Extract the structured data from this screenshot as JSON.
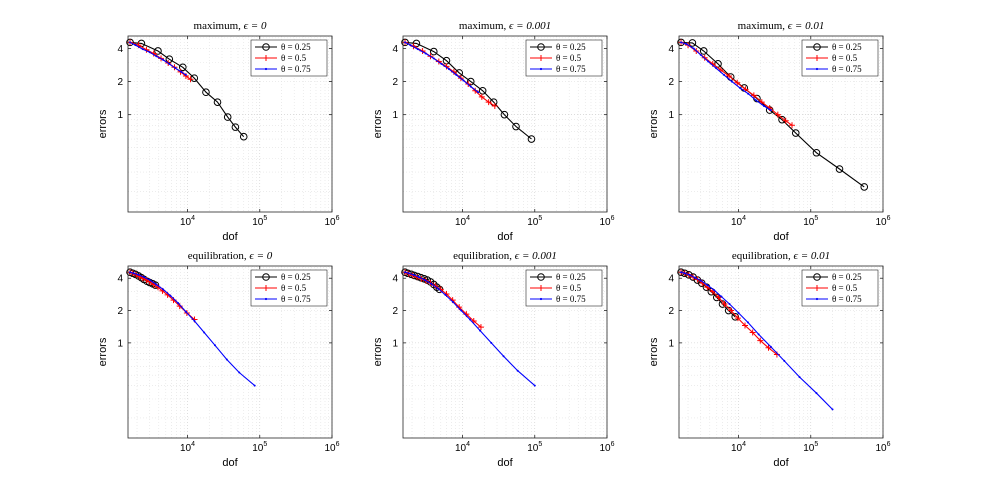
{
  "chart_data": [
    {
      "type": "line",
      "title_text": "maximum, ",
      "title_param": "ϵ = 0",
      "xlabel": "dof",
      "ylabel": "errors",
      "xscale": "log",
      "yscale": "log",
      "xlim": [
        1500,
        1000000
      ],
      "ylim": [
        0.13,
        5.2
      ],
      "grid": true,
      "legend_position": "top-right",
      "series": [
        {
          "name": "θ = 0.25",
          "color": "#000000",
          "marker": "circle",
          "x": [
            1600,
            2300,
            3900,
            5600,
            8600,
            12400,
            18000,
            26000,
            36000,
            46000,
            60000
          ],
          "y": [
            4.55,
            4.45,
            3.8,
            3.2,
            2.7,
            2.15,
            1.6,
            1.3,
            0.95,
            0.77,
            0.63
          ]
        },
        {
          "name": "θ = 0.5",
          "color": "#ff0000",
          "marker": "plus",
          "x": [
            1600,
            2100,
            2700,
            3400,
            4300,
            5400,
            6600,
            8000,
            9500,
            11000
          ],
          "y": [
            4.55,
            4.3,
            3.9,
            3.6,
            3.25,
            2.95,
            2.7,
            2.45,
            2.25,
            2.1
          ]
        },
        {
          "name": "θ = 0.75",
          "color": "#0000ff",
          "marker": "dot",
          "x": [
            1600,
            1900,
            2400,
            3000,
            3700,
            4600,
            5600,
            6800,
            8200,
            9500
          ],
          "y": [
            4.55,
            4.3,
            3.95,
            3.7,
            3.4,
            3.15,
            2.9,
            2.65,
            2.45,
            2.3
          ]
        }
      ]
    },
    {
      "type": "line",
      "title_text": "maximum, ",
      "title_param": "ϵ = 0.001",
      "xlabel": "dof",
      "ylabel": "errors",
      "xscale": "log",
      "yscale": "log",
      "xlim": [
        1500,
        1000000
      ],
      "ylim": [
        0.13,
        5.2
      ],
      "grid": true,
      "legend_position": "top-right",
      "series": [
        {
          "name": "θ = 0.25",
          "color": "#000000",
          "marker": "circle",
          "x": [
            1600,
            2300,
            4000,
            6000,
            9000,
            13000,
            19000,
            27000,
            38000,
            55000,
            90000
          ],
          "y": [
            4.55,
            4.45,
            3.75,
            3.1,
            2.4,
            2.0,
            1.65,
            1.3,
            1.0,
            0.78,
            0.6
          ]
        },
        {
          "name": "θ = 0.5",
          "color": "#ff0000",
          "marker": "plus",
          "x": [
            1600,
            2100,
            2800,
            3600,
            4700,
            6000,
            7600,
            9500,
            12000,
            15000,
            18500,
            23000,
            28000
          ],
          "y": [
            4.55,
            4.2,
            3.8,
            3.4,
            3.05,
            2.75,
            2.45,
            2.15,
            1.9,
            1.65,
            1.45,
            1.3,
            1.2
          ]
        },
        {
          "name": "θ = 0.75",
          "color": "#0000ff",
          "marker": "dot",
          "x": [
            1600,
            1900,
            2400,
            3100,
            4000,
            5100,
            6500,
            8200,
            10300,
            13000,
            16500
          ],
          "y": [
            4.55,
            4.3,
            3.95,
            3.6,
            3.25,
            2.9,
            2.6,
            2.3,
            2.05,
            1.8,
            1.6
          ]
        }
      ]
    },
    {
      "type": "line",
      "title_text": "maximum, ",
      "title_param": "ϵ = 0.01",
      "xlabel": "dof",
      "ylabel": "errors",
      "xscale": "log",
      "yscale": "log",
      "xlim": [
        1500,
        1000000
      ],
      "ylim": [
        0.13,
        5.2
      ],
      "grid": true,
      "legend_position": "top-right",
      "series": [
        {
          "name": "θ = 0.25",
          "color": "#000000",
          "marker": "circle",
          "x": [
            1600,
            2300,
            3300,
            5200,
            7800,
            12000,
            18000,
            27000,
            40000,
            62000,
            120000,
            250000,
            550000
          ],
          "y": [
            4.55,
            4.5,
            3.8,
            2.9,
            2.2,
            1.75,
            1.4,
            1.1,
            0.9,
            0.68,
            0.45,
            0.32,
            0.22
          ]
        },
        {
          "name": "θ = 0.5",
          "color": "#ff0000",
          "marker": "plus",
          "x": [
            1600,
            2000,
            2600,
            3400,
            4400,
            5700,
            7400,
            9600,
            12500,
            16300,
            21000,
            27000,
            35000,
            45000,
            55000
          ],
          "y": [
            4.55,
            4.3,
            3.8,
            3.3,
            2.9,
            2.55,
            2.25,
            1.95,
            1.7,
            1.5,
            1.3,
            1.15,
            1.0,
            0.88,
            0.8
          ]
        },
        {
          "name": "θ = 0.75",
          "color": "#0000ff",
          "marker": "dot",
          "x": [
            1600,
            1900,
            2400,
            3000,
            3800,
            4900,
            6300,
            8100,
            10500,
            13600,
            17500,
            22500,
            28000
          ],
          "y": [
            4.55,
            4.4,
            4.0,
            3.5,
            3.05,
            2.65,
            2.3,
            2.0,
            1.75,
            1.55,
            1.35,
            1.2,
            1.1
          ]
        }
      ]
    },
    {
      "type": "line",
      "title_text": "equilibration, ",
      "title_param": "ϵ = 0",
      "xlabel": "dof",
      "ylabel": "errors",
      "xscale": "log",
      "yscale": "log",
      "xlim": [
        1500,
        1000000
      ],
      "ylim": [
        0.13,
        5.2
      ],
      "grid": true,
      "legend_position": "top-right",
      "series": [
        {
          "name": "θ = 0.25",
          "color": "#000000",
          "marker": "circle",
          "x": [
            1600,
            1750,
            1900,
            2100,
            2300,
            2500,
            2750,
            3000,
            3300,
            3600
          ],
          "y": [
            4.55,
            4.45,
            4.35,
            4.2,
            4.05,
            3.9,
            3.75,
            3.65,
            3.55,
            3.45
          ]
        },
        {
          "name": "θ = 0.5",
          "color": "#ff0000",
          "marker": "plus",
          "x": [
            1600,
            1750,
            1950,
            2150,
            2400,
            2700,
            3000,
            3400,
            3900,
            4500,
            5300,
            6400,
            7800,
            9800,
            12500
          ],
          "y": [
            4.55,
            4.45,
            4.3,
            4.15,
            4.0,
            3.85,
            3.7,
            3.5,
            3.3,
            3.05,
            2.8,
            2.5,
            2.2,
            1.9,
            1.65
          ]
        },
        {
          "name": "θ = 0.75",
          "color": "#0000ff",
          "marker": "dot",
          "x": [
            1600,
            1800,
            2100,
            2500,
            3000,
            3700,
            4600,
            5800,
            7400,
            9500,
            12500,
            17000,
            24000,
            35000,
            52000,
            85000
          ],
          "y": [
            4.55,
            4.45,
            4.3,
            4.1,
            3.85,
            3.5,
            3.15,
            2.75,
            2.35,
            1.95,
            1.6,
            1.25,
            0.95,
            0.7,
            0.53,
            0.4
          ]
        }
      ]
    },
    {
      "type": "line",
      "title_text": "equilibration, ",
      "title_param": "ϵ = 0.001",
      "xlabel": "dof",
      "ylabel": "errors",
      "xscale": "log",
      "yscale": "log",
      "xlim": [
        1500,
        1000000
      ],
      "ylim": [
        0.13,
        5.2
      ],
      "grid": true,
      "legend_position": "top-right",
      "series": [
        {
          "name": "θ = 0.25",
          "color": "#000000",
          "marker": "circle",
          "x": [
            1600,
            1750,
            1950,
            2150,
            2400,
            2650,
            2950,
            3250,
            3600,
            4000,
            4400,
            4800
          ],
          "y": [
            4.55,
            4.45,
            4.35,
            4.25,
            4.15,
            4.05,
            3.95,
            3.85,
            3.7,
            3.5,
            3.3,
            3.15
          ]
        },
        {
          "name": "θ = 0.5",
          "color": "#ff0000",
          "marker": "plus",
          "x": [
            1600,
            1800,
            2050,
            2350,
            2700,
            3100,
            3600,
            4200,
            5000,
            6000,
            7300,
            9000,
            11300,
            14300,
            18000
          ],
          "y": [
            4.55,
            4.4,
            4.25,
            4.1,
            3.95,
            3.8,
            3.6,
            3.4,
            3.15,
            2.85,
            2.5,
            2.15,
            1.85,
            1.6,
            1.4
          ]
        },
        {
          "name": "θ = 0.75",
          "color": "#0000ff",
          "marker": "dot",
          "x": [
            1600,
            1800,
            2100,
            2500,
            3000,
            3700,
            4600,
            5800,
            7400,
            9600,
            12700,
            17500,
            25000,
            37000,
            58000,
            100000
          ],
          "y": [
            4.55,
            4.45,
            4.3,
            4.1,
            3.85,
            3.55,
            3.2,
            2.8,
            2.4,
            2.0,
            1.65,
            1.3,
            1.0,
            0.75,
            0.55,
            0.4
          ]
        }
      ]
    },
    {
      "type": "line",
      "title_text": "equilibration, ",
      "title_param": "ϵ = 0.01",
      "xlabel": "dof",
      "ylabel": "errors",
      "xscale": "log",
      "yscale": "log",
      "xlim": [
        1500,
        1000000
      ],
      "ylim": [
        0.13,
        5.2
      ],
      "grid": true,
      "legend_position": "top-right",
      "series": [
        {
          "name": "θ = 0.25",
          "color": "#000000",
          "marker": "circle",
          "x": [
            1600,
            1800,
            2050,
            2350,
            2700,
            3100,
            3600,
            4200,
            5000,
            6000,
            7300,
            9000
          ],
          "y": [
            4.55,
            4.45,
            4.3,
            4.1,
            3.85,
            3.6,
            3.3,
            3.0,
            2.65,
            2.3,
            2.0,
            1.75
          ]
        },
        {
          "name": "θ = 0.5",
          "color": "#ff0000",
          "marker": "plus",
          "x": [
            1600,
            1800,
            2050,
            2350,
            2700,
            3150,
            3700,
            4400,
            5300,
            6400,
            7900,
            9800,
            12300,
            15700,
            20000,
            26000,
            34000
          ],
          "y": [
            4.55,
            4.45,
            4.3,
            4.1,
            3.9,
            3.6,
            3.3,
            3.0,
            2.65,
            2.3,
            2.0,
            1.7,
            1.45,
            1.25,
            1.05,
            0.9,
            0.78
          ]
        },
        {
          "name": "θ = 0.75",
          "color": "#0000ff",
          "marker": "dot",
          "x": [
            1600,
            1800,
            2100,
            2500,
            3000,
            3700,
            4600,
            5800,
            7500,
            10000,
            13500,
            19000,
            28000,
            43000,
            70000,
            120000,
            200000
          ],
          "y": [
            4.55,
            4.45,
            4.3,
            4.05,
            3.8,
            3.45,
            3.1,
            2.7,
            2.3,
            1.9,
            1.55,
            1.2,
            0.92,
            0.68,
            0.48,
            0.34,
            0.24
          ]
        }
      ]
    }
  ],
  "axes": {
    "y_ticks": [
      {
        "value": 1,
        "label": "1"
      },
      {
        "value": 2,
        "label": "2"
      },
      {
        "value": 4,
        "label": "4"
      }
    ],
    "x_ticks": [
      {
        "value": 10000,
        "base": "10",
        "exp": "4"
      },
      {
        "value": 100000,
        "base": "10",
        "exp": "5"
      },
      {
        "value": 1000000,
        "base": "10",
        "exp": "6"
      }
    ]
  }
}
